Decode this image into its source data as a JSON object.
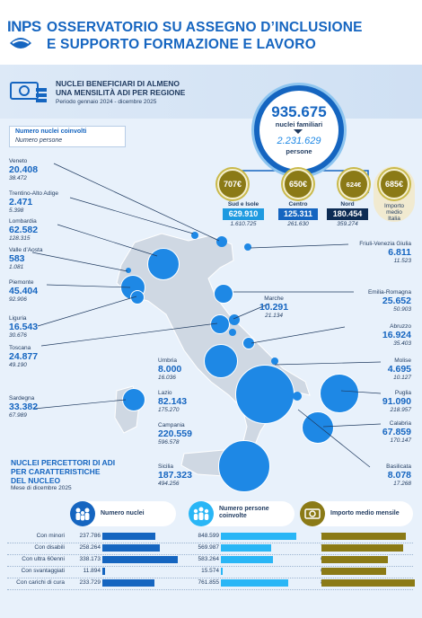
{
  "header": {
    "logo": "INPS",
    "title_line1": "OSSERVATORIO SU ASSEGNO D’INCLUSIONE",
    "title_line2": "E SUPPORTO FORMAZIONE E LAVORO"
  },
  "section": {
    "subtitle_line1": "NUCLEI BENEFICIARI DI ALMENO",
    "subtitle_line2": "UNA MENSILITÀ ADI PER REGIONE",
    "period": "Periodo gennaio 2024 - dicembre 2025"
  },
  "totals": {
    "nuclei": "935.675",
    "nuclei_label": "nuclei familiari",
    "persone": "2.231.629",
    "persone_label": "persone"
  },
  "areas": [
    {
      "amount": "707€",
      "name": "Sud e Isole",
      "nuclei": "629.910",
      "persone": "1.610.725",
      "color": "#1e9ae0"
    },
    {
      "amount": "650€",
      "name": "Centro",
      "nuclei": "125.311",
      "persone": "261.630",
      "color": "#1565c0"
    },
    {
      "amount": "624€",
      "name": "Nord",
      "nuclei": "180.454",
      "persone": "359.274",
      "color": "#0d2c54"
    }
  ],
  "italy_average": {
    "amount": "685€",
    "label_line1": "Importo",
    "label_line2": "medio",
    "label_line3": "Italia"
  },
  "legend": {
    "title": "Numero nuclei coinvolti",
    "subtitle": "Numero persone"
  },
  "regions_left": [
    {
      "name": "Veneto",
      "nuclei": "20.408",
      "persone": "38.472"
    },
    {
      "name": "Trentino-Alto Adige",
      "nuclei": "2.471",
      "persone": "5.398"
    },
    {
      "name": "Lombardia",
      "nuclei": "62.582",
      "persone": "128.315"
    },
    {
      "name": "Valle d’Aosta",
      "nuclei": "583",
      "persone": "1.081"
    },
    {
      "name": "Piemonte",
      "nuclei": "45.404",
      "persone": "92.906"
    },
    {
      "name": "Liguria",
      "nuclei": "16.543",
      "persone": "30.676"
    },
    {
      "name": "Toscana",
      "nuclei": "24.877",
      "persone": "49.190"
    },
    {
      "name": "Sardegna",
      "nuclei": "33.382",
      "persone": "67.989"
    }
  ],
  "regions_center": [
    {
      "name": "Marche",
      "nuclei": "10.291",
      "persone": "21.134"
    },
    {
      "name": "Umbria",
      "nuclei": "8.000",
      "persone": "16.036"
    },
    {
      "name": "Lazio",
      "nuclei": "82.143",
      "persone": "175.270"
    },
    {
      "name": "Campania",
      "nuclei": "220.559",
      "persone": "596.578"
    },
    {
      "name": "Sicilia",
      "nuclei": "187.323",
      "persone": "494.256"
    }
  ],
  "regions_right": [
    {
      "name": "Friuli-Venezia Giulia",
      "nuclei": "6.811",
      "persone": "11.523"
    },
    {
      "name": "Emilia-Romagna",
      "nuclei": "25.652",
      "persone": "50.903"
    },
    {
      "name": "Abruzzo",
      "nuclei": "16.924",
      "persone": "35.403"
    },
    {
      "name": "Molise",
      "nuclei": "4.695",
      "persone": "10.127"
    },
    {
      "name": "Puglia",
      "nuclei": "91.090",
      "persone": "218.957"
    },
    {
      "name": "Calabria",
      "nuclei": "67.859",
      "persone": "170.147"
    },
    {
      "name": "Basilicata",
      "nuclei": "8.078",
      "persone": "17.268"
    }
  ],
  "bottom": {
    "title_line1": "NUCLEI PERCETTORI DI ADI",
    "title_line2": "PER CARATTERISTICHE",
    "title_line3": "DEL NUCLEO",
    "period": "Mese di dicembre 2025",
    "col1_label": "Numero nuclei",
    "col2_label_line1": "Numero persone",
    "col2_label_line2": "coinvolte",
    "col3_label": "Importo medio mensile"
  },
  "chart_data": {
    "type": "bar",
    "categories": [
      "Con minori",
      "Con disabili",
      "Con ultra 60enni",
      "Con svantaggiati",
      "Con carichi di cura"
    ],
    "series": [
      {
        "name": "Numero nuclei",
        "values": [
          237786,
          258264,
          338173,
          11894,
          233729
        ],
        "labels": [
          "237.786",
          "258.264",
          "338.173",
          "11.894",
          "233.729"
        ]
      },
      {
        "name": "Numero persone coinvolte",
        "values": [
          848599,
          569987,
          583264,
          15574,
          761855
        ],
        "labels": [
          "848.599",
          "569.987",
          "583.264",
          "15.574",
          "761.855"
        ]
      },
      {
        "name": "Importo medio mensile",
        "values": [
          799,
          769,
          630,
          614,
          881
        ],
        "labels": [
          "799",
          "769",
          "630",
          "614",
          "881"
        ]
      }
    ],
    "colors": [
      "#1565c0",
      "#29b6f6",
      "#8b7a16"
    ]
  },
  "map_colors": {
    "land": "#cfd8e3",
    "bubble": "#1e88e5",
    "dark_bubble": "#1565c0"
  }
}
